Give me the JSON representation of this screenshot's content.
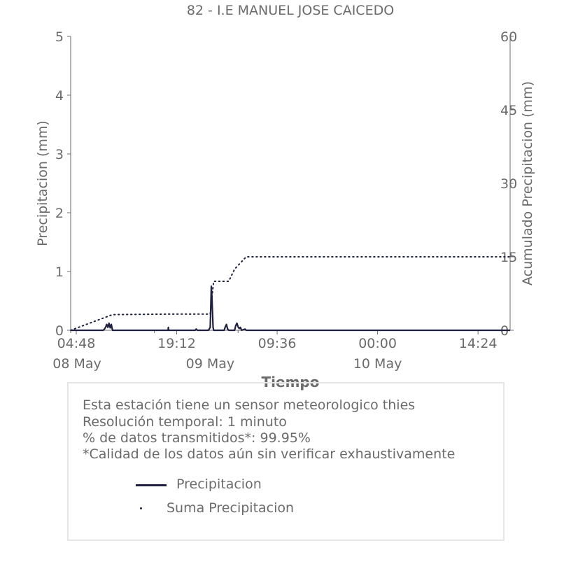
{
  "chart_data": {
    "type": "line",
    "title": "82 - I.E MANUEL JOSE CAICEDO",
    "xlabel": "Tiempo",
    "ylabel": "Precipitacion (mm)",
    "y2label": "Acumulado Precipitacion (mm)",
    "ylim": [
      0,
      5
    ],
    "y2lim": [
      0,
      60
    ],
    "yticks": [
      "0",
      "1",
      "2",
      "3",
      "4",
      "5"
    ],
    "y2ticks": [
      "0",
      "15",
      "30",
      "45",
      "60"
    ],
    "x_range": [
      "2024-05-08 04:00",
      "2024-05-10 19:00"
    ],
    "xticks": [
      "04:48",
      "19:12",
      "09:36",
      "00:00",
      "14:24"
    ],
    "xticks_dates": [
      "08 May",
      "09 May",
      "10 May"
    ],
    "series": [
      {
        "name": "Precipitacion",
        "color": "#1f2040",
        "style": "line",
        "x": [
          "2024-05-08 04:00",
          "2024-05-08 08:40",
          "2024-05-08 08:50",
          "2024-05-08 09:00",
          "2024-05-08 09:10",
          "2024-05-08 09:20",
          "2024-05-08 09:30",
          "2024-05-08 09:40",
          "2024-05-08 09:50",
          "2024-05-08 10:00",
          "2024-05-08 17:58",
          "2024-05-08 18:00",
          "2024-05-08 18:02",
          "2024-05-08 21:50",
          "2024-05-08 22:00",
          "2024-05-08 22:10",
          "2024-05-08 22:20",
          "2024-05-08 23:45",
          "2024-05-09 00:00",
          "2024-05-09 00:05",
          "2024-05-09 00:10",
          "2024-05-09 00:15",
          "2024-05-09 00:20",
          "2024-05-09 00:25",
          "2024-05-09 00:30",
          "2024-05-09 00:40",
          "2024-05-09 02:00",
          "2024-05-09 02:10",
          "2024-05-09 02:20",
          "2024-05-09 02:30",
          "2024-05-09 02:40",
          "2024-05-09 03:30",
          "2024-05-09 03:40",
          "2024-05-09 03:50",
          "2024-05-09 04:00",
          "2024-05-09 04:10",
          "2024-05-09 04:20",
          "2024-05-09 04:30",
          "2024-05-09 05:00",
          "2024-05-09 05:10",
          "2024-05-10 19:00"
        ],
        "values": [
          0,
          0,
          0.02,
          0.05,
          0.1,
          0.05,
          0.12,
          0.04,
          0.1,
          0,
          0,
          0.05,
          0,
          0,
          0.02,
          0,
          0,
          0,
          0.05,
          0.4,
          0.75,
          0.55,
          0.3,
          0.05,
          0,
          0,
          0,
          0.06,
          0.1,
          0.02,
          0,
          0,
          0.08,
          0.12,
          0.06,
          0.03,
          0.05,
          0,
          0.02,
          0,
          0
        ]
      },
      {
        "name": "Suma Precipitacion",
        "color": "#1f2040",
        "style": "dotted",
        "axis": "right",
        "x": [
          "2024-05-08 04:00",
          "2024-05-08 10:00",
          "2024-05-08 18:00",
          "2024-05-09 00:00",
          "2024-05-09 00:30",
          "2024-05-09 02:40",
          "2024-05-09 03:30",
          "2024-05-09 05:10",
          "2024-05-10 19:00"
        ],
        "values": [
          0,
          3.2,
          3.3,
          3.3,
          10,
          10,
          12.5,
          15,
          15
        ]
      }
    ]
  },
  "info": {
    "line1": "Esta estación tiene un sensor meteorologico thies",
    "line2": "Resolución temporal: 1 minuto",
    "line3": "% de datos transmitidos*: 99.95%",
    "line4": "*Calidad de los datos aún sin verificar exhaustivamente"
  },
  "legend": {
    "item1": "Precipitacion",
    "item2": "Suma Precipitacion"
  }
}
